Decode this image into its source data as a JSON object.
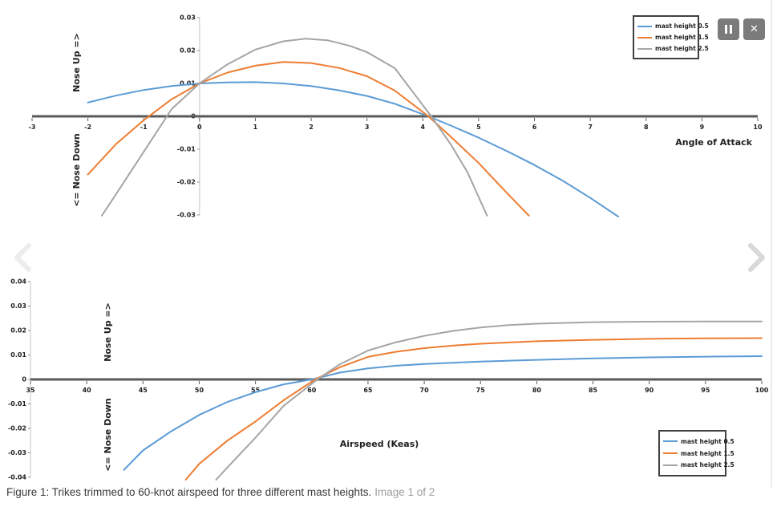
{
  "viewer": {
    "image_counter": "Image 1 of 2",
    "icons": {
      "pause_glyph": "❚❚",
      "close_glyph": "✕",
      "prev_icon": "chevron-left",
      "next_icon": "chevron-right"
    }
  },
  "caption": {
    "figure_text": "Figure 1: Trikes trimmed to 60-knot airspeed for three different mast heights.",
    "image_counter": "Image 1 of 2"
  },
  "colors": {
    "series_blue": "#5B9BD5",
    "series_orange": "#ED7D31",
    "series_gray": "#A5A5A5",
    "axis": "#595959",
    "button_bg": "#7b7b7b",
    "prev_chevron": "#ececec",
    "next_chevron": "#d9d9d9"
  },
  "chart_data": [
    {
      "type": "line",
      "title": "",
      "xlabel": "Angle of Attack",
      "ylabel_positive": "Nose Up =>",
      "ylabel_negative": "<= Nose Down",
      "xlim": [
        -3,
        10
      ],
      "ylim": [
        -0.03,
        0.03
      ],
      "x_ticks": [
        -3,
        -2,
        -1,
        0,
        1,
        2,
        3,
        4,
        5,
        6,
        7,
        8,
        9,
        10
      ],
      "y_ticks": [
        0.03,
        0.02,
        0.01,
        0,
        -0.01,
        -0.02,
        -0.03
      ],
      "grid": false,
      "legend_position": "top-right",
      "series": [
        {
          "name": "mast height 0.5",
          "color": "#5B9BD5",
          "points": [
            [
              -2,
              0.0042
            ],
            [
              -1.5,
              0.0063
            ],
            [
              -1,
              0.008
            ],
            [
              -0.5,
              0.0092
            ],
            [
              0,
              0.01
            ],
            [
              0.5,
              0.0103
            ],
            [
              1,
              0.0104
            ],
            [
              1.5,
              0.01
            ],
            [
              2,
              0.0092
            ],
            [
              2.5,
              0.0079
            ],
            [
              3,
              0.0062
            ],
            [
              3.5,
              0.0038
            ],
            [
              4.1,
              0
            ],
            [
              4.5,
              -0.0028
            ],
            [
              5,
              -0.0065
            ],
            [
              5.5,
              -0.0105
            ],
            [
              6,
              -0.0148
            ],
            [
              6.5,
              -0.0195
            ],
            [
              7,
              -0.0248
            ],
            [
              7.5,
              -0.0305
            ]
          ]
        },
        {
          "name": "mast height 1.5",
          "color": "#ED7D31",
          "points": [
            [
              -2,
              -0.0177
            ],
            [
              -1.5,
              -0.0085
            ],
            [
              -1,
              -0.0012
            ],
            [
              -0.5,
              0.0052
            ],
            [
              0,
              0.01
            ],
            [
              0.5,
              0.0133
            ],
            [
              1,
              0.0154
            ],
            [
              1.5,
              0.0165
            ],
            [
              2,
              0.0162
            ],
            [
              2.5,
              0.0147
            ],
            [
              3,
              0.0122
            ],
            [
              3.5,
              0.0078
            ],
            [
              4.1,
              0
            ],
            [
              4.5,
              -0.0062
            ],
            [
              5,
              -0.0142
            ],
            [
              5.5,
              -0.0232
            ],
            [
              5.9,
              -0.0302
            ]
          ]
        },
        {
          "name": "mast height 2.5",
          "color": "#A5A5A5",
          "points": [
            [
              -1.75,
              -0.0302
            ],
            [
              -1.5,
              -0.0238
            ],
            [
              -1,
              -0.0108
            ],
            [
              -0.5,
              0.0022
            ],
            [
              0,
              0.01
            ],
            [
              0.5,
              0.0158
            ],
            [
              1,
              0.0203
            ],
            [
              1.5,
              0.0228
            ],
            [
              1.9,
              0.0236
            ],
            [
              2.3,
              0.0231
            ],
            [
              2.7,
              0.0214
            ],
            [
              3,
              0.0195
            ],
            [
              3.5,
              0.0146
            ],
            [
              4.15,
              0
            ],
            [
              4.5,
              -0.0085
            ],
            [
              4.8,
              -0.017
            ],
            [
              5.15,
              -0.0302
            ]
          ]
        }
      ]
    },
    {
      "type": "line",
      "title": "",
      "xlabel": "Airspeed (Keas)",
      "ylabel_positive": "Nose Up =>",
      "ylabel_negative": "<= Nose Down",
      "xlim": [
        35,
        100
      ],
      "ylim": [
        -0.04,
        0.04
      ],
      "x_ticks": [
        35,
        40,
        45,
        50,
        55,
        60,
        65,
        70,
        75,
        80,
        85,
        90,
        95,
        100
      ],
      "y_ticks": [
        0.04,
        0.03,
        0.02,
        0.01,
        0,
        -0.01,
        -0.02,
        -0.03,
        -0.04
      ],
      "grid": false,
      "legend_position": "bottom-right",
      "series": [
        {
          "name": "mast height 0.5",
          "color": "#5B9BD5",
          "points": [
            [
              43.3,
              -0.037
            ],
            [
              45,
              -0.029
            ],
            [
              47.5,
              -0.0212
            ],
            [
              50,
              -0.0145
            ],
            [
              52.5,
              -0.0092
            ],
            [
              55,
              -0.0052
            ],
            [
              57.5,
              -0.002
            ],
            [
              60,
              0
            ],
            [
              62.5,
              0.0028
            ],
            [
              65,
              0.0045
            ],
            [
              67.5,
              0.0056
            ],
            [
              70,
              0.0063
            ],
            [
              75,
              0.0073
            ],
            [
              80,
              0.008
            ],
            [
              85,
              0.0086
            ],
            [
              90,
              0.009
            ],
            [
              95,
              0.0093
            ],
            [
              100,
              0.0095
            ]
          ]
        },
        {
          "name": "mast height 1.5",
          "color": "#ED7D31",
          "points": [
            [
              48.8,
              -0.041
            ],
            [
              50,
              -0.0345
            ],
            [
              52.5,
              -0.025
            ],
            [
              55,
              -0.0172
            ],
            [
              57.5,
              -0.0085
            ],
            [
              60.3,
              0
            ],
            [
              62.5,
              0.005
            ],
            [
              65,
              0.0092
            ],
            [
              67.5,
              0.0113
            ],
            [
              70,
              0.0128
            ],
            [
              72.5,
              0.0138
            ],
            [
              75,
              0.0146
            ],
            [
              80,
              0.0156
            ],
            [
              85,
              0.0162
            ],
            [
              90,
              0.0166
            ],
            [
              95,
              0.0168
            ],
            [
              100,
              0.0169
            ]
          ]
        },
        {
          "name": "mast height 2.5",
          "color": "#A5A5A5",
          "points": [
            [
              51.5,
              -0.041
            ],
            [
              52.5,
              -0.036
            ],
            [
              55,
              -0.0238
            ],
            [
              57.5,
              -0.0108
            ],
            [
              60.5,
              0
            ],
            [
              62.5,
              0.0062
            ],
            [
              65,
              0.0118
            ],
            [
              67.5,
              0.0152
            ],
            [
              70,
              0.0178
            ],
            [
              72.5,
              0.0198
            ],
            [
              75,
              0.0212
            ],
            [
              77.5,
              0.0222
            ],
            [
              80,
              0.0228
            ],
            [
              85,
              0.0234
            ],
            [
              90,
              0.0236
            ],
            [
              95,
              0.0237
            ],
            [
              100,
              0.0237
            ]
          ]
        }
      ]
    }
  ]
}
